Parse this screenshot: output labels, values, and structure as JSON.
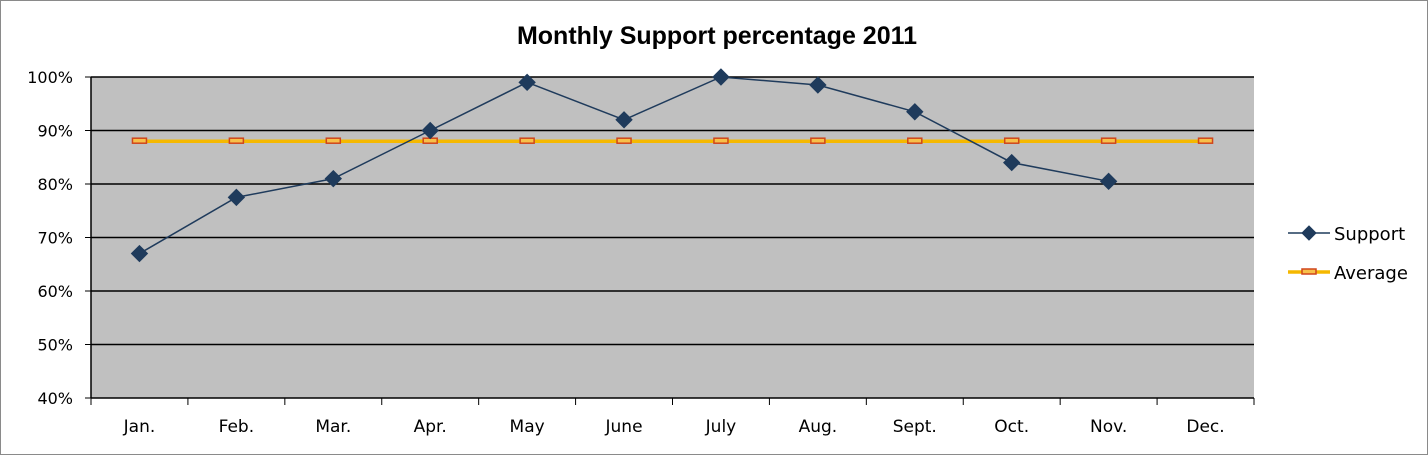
{
  "chart_data": {
    "type": "line",
    "title": "Monthly Support percentage 2011",
    "categories": [
      "Jan.",
      "Feb.",
      "Mar.",
      "Apr.",
      "May",
      "June",
      "July",
      "Aug.",
      "Sept.",
      "Oct.",
      "Nov.",
      "Dec."
    ],
    "series": [
      {
        "name": "Support",
        "color": "#1f3b5c",
        "marker": "diamond",
        "values": [
          67,
          77.5,
          81,
          90,
          99,
          92,
          100,
          98.5,
          93.5,
          84,
          80.5,
          null
        ]
      },
      {
        "name": "Average",
        "color": "#f5b800",
        "marker": "dash",
        "marker_color": "#d0451b",
        "values": [
          88,
          88,
          88,
          88,
          88,
          88,
          88,
          88,
          88,
          88,
          88,
          88
        ]
      }
    ],
    "y_ticks": [
      "40%",
      "50%",
      "60%",
      "70%",
      "80%",
      "90%",
      "100%"
    ],
    "ylim": [
      40,
      100
    ],
    "plot_background": "#c0c0c0",
    "grid": true,
    "legend_position": "right"
  }
}
